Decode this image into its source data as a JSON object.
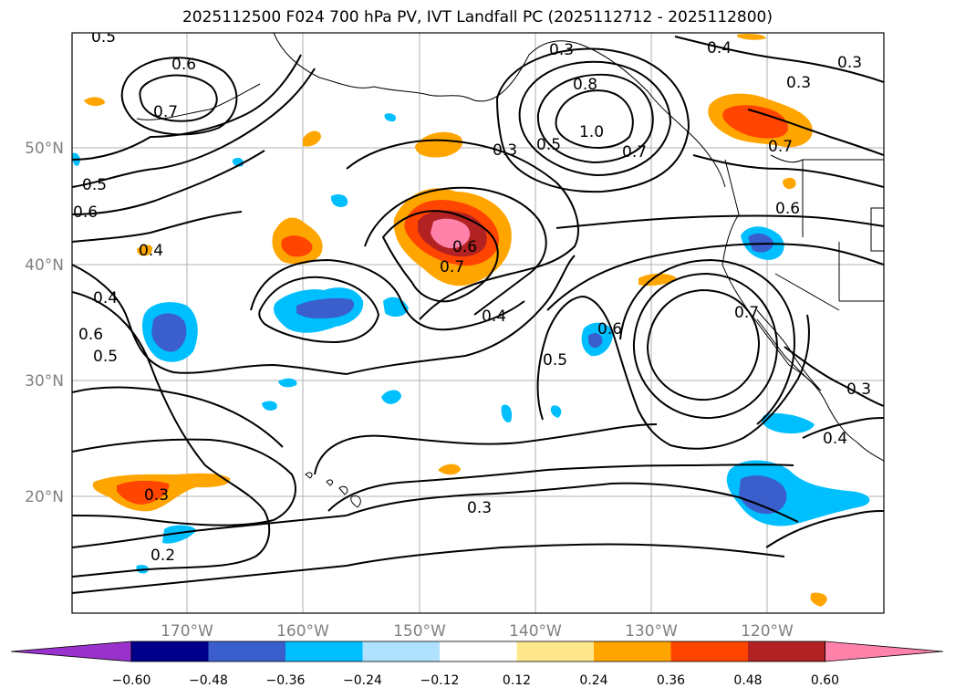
{
  "title": "2025112500 F024 700 hPa PV, IVT Landfall PC (2025112712 - 2025112800)",
  "map": {
    "lat_labels": [
      "50°N",
      "40°N",
      "30°N",
      "20°N"
    ],
    "lon_labels": [
      "170°W",
      "160°W",
      "150°W",
      "140°W",
      "130°W",
      "120°W"
    ],
    "contour_labels": [
      "0.5",
      "0.6",
      "0.7",
      "0.5",
      "0.6",
      "0.4",
      "0.4",
      "0.6",
      "0.5",
      "0.3",
      "0.2",
      "0.3",
      "0.5",
      "0.3",
      "0.8",
      "1.0",
      "0.7",
      "0.4",
      "0.3",
      "0.3",
      "0.7",
      "0.6",
      "0.6",
      "0.7",
      "0.4",
      "0.5",
      "0.6",
      "0.7",
      "0.3",
      "0.4",
      "0.3"
    ]
  },
  "colorbar": {
    "ticks": [
      "−0.60",
      "−0.48",
      "−0.36",
      "−0.24",
      "−0.12",
      "0.12",
      "0.24",
      "0.36",
      "0.48",
      "0.60"
    ],
    "colors": [
      "#9932cc",
      "#00008b",
      "#3a5fcd",
      "#00bfff",
      "#b0e2ff",
      "#ffffff",
      "#ffe88c",
      "#ffa500",
      "#ff4500",
      "#b22222",
      "#ff82ab"
    ]
  }
}
